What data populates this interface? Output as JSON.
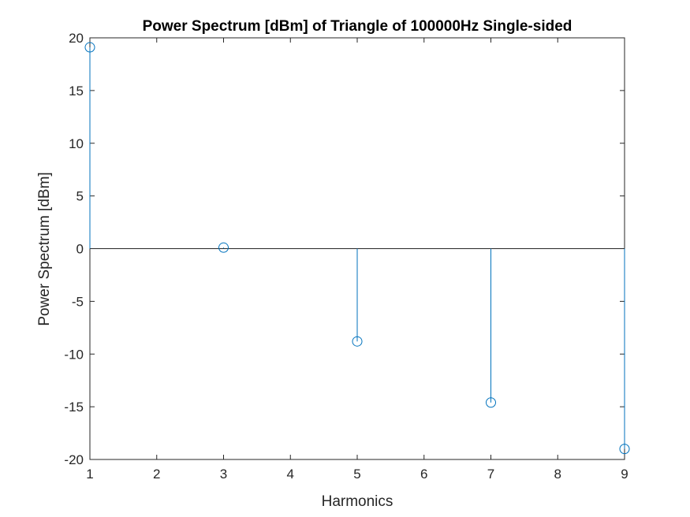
{
  "chart_data": {
    "type": "stem",
    "title": "Power Spectrum [dBm] of Triangle of 100000Hz Single-sided",
    "xlabel": "Harmonics",
    "ylabel": "Power Spectrum [dBm]",
    "xlim": [
      1,
      9
    ],
    "ylim": [
      -20,
      20
    ],
    "xticks": [
      1,
      2,
      3,
      4,
      5,
      6,
      7,
      8,
      9
    ],
    "yticks": [
      -20,
      -15,
      -10,
      -5,
      0,
      5,
      10,
      15,
      20
    ],
    "baseline": 0,
    "grid": false,
    "series": [
      {
        "x": [
          1,
          3,
          5,
          7,
          9
        ],
        "y": [
          19.1,
          0.1,
          -8.8,
          -14.6,
          -19.0
        ],
        "color": "#0072BD",
        "marker": "open-circle"
      }
    ]
  }
}
